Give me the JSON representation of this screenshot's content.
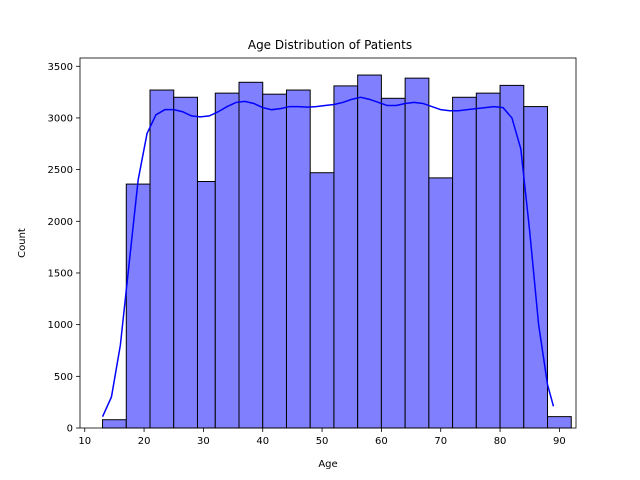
{
  "chart_data": {
    "type": "bar",
    "title": "Age Distribution of Patients",
    "xlabel": "Age",
    "ylabel": "Count",
    "xlim": [
      9.2,
      92.8
    ],
    "ylim": [
      0,
      3580
    ],
    "xticks": [
      10,
      20,
      30,
      40,
      50,
      60,
      70,
      80,
      90
    ],
    "yticks": [
      0,
      500,
      1000,
      1500,
      2000,
      2500,
      3000,
      3500
    ],
    "grid": false,
    "bar_color": "#8080ff",
    "edge_color": "#000000",
    "kde_color": "#0000ff",
    "bins": [
      {
        "x0": 13,
        "x1": 17,
        "count": 80
      },
      {
        "x0": 17,
        "x1": 21,
        "count": 2360
      },
      {
        "x0": 21,
        "x1": 25,
        "count": 3270
      },
      {
        "x0": 25,
        "x1": 29,
        "count": 3200
      },
      {
        "x0": 29,
        "x1": 32,
        "count": 2385
      },
      {
        "x0": 32,
        "x1": 36,
        "count": 3240
      },
      {
        "x0": 36,
        "x1": 40,
        "count": 3345
      },
      {
        "x0": 40,
        "x1": 44,
        "count": 3230
      },
      {
        "x0": 44,
        "x1": 48,
        "count": 3270
      },
      {
        "x0": 48,
        "x1": 52,
        "count": 2470
      },
      {
        "x0": 52,
        "x1": 56,
        "count": 3310
      },
      {
        "x0": 56,
        "x1": 60,
        "count": 3415
      },
      {
        "x0": 60,
        "x1": 64,
        "count": 3190
      },
      {
        "x0": 64,
        "x1": 68,
        "count": 3385
      },
      {
        "x0": 68,
        "x1": 72,
        "count": 2420
      },
      {
        "x0": 72,
        "x1": 76,
        "count": 3200
      },
      {
        "x0": 76,
        "x1": 80,
        "count": 3240
      },
      {
        "x0": 80,
        "x1": 84,
        "count": 3315
      },
      {
        "x0": 84,
        "x1": 88,
        "count": 3110
      },
      {
        "x0": 88,
        "x1": 92,
        "count": 110
      }
    ],
    "kde": {
      "x": [
        13,
        14.5,
        16,
        17.5,
        19,
        20.5,
        22,
        23.5,
        25,
        26.5,
        28,
        29.5,
        31,
        32.5,
        34,
        35.5,
        37,
        38.5,
        40,
        41.5,
        43,
        44.5,
        46,
        47.5,
        49,
        50.5,
        52,
        53.5,
        55,
        56.5,
        58,
        59.5,
        61,
        62.5,
        64,
        65.5,
        67,
        68.5,
        70,
        71.5,
        73,
        74.5,
        76,
        77.5,
        79,
        80.5,
        82,
        83.5,
        85,
        86.5,
        88,
        89
      ],
      "y": [
        110,
        300,
        800,
        1600,
        2400,
        2850,
        3030,
        3080,
        3080,
        3060,
        3020,
        3010,
        3020,
        3060,
        3110,
        3150,
        3160,
        3140,
        3100,
        3080,
        3090,
        3110,
        3110,
        3105,
        3110,
        3120,
        3130,
        3150,
        3180,
        3200,
        3180,
        3150,
        3120,
        3120,
        3140,
        3150,
        3140,
        3110,
        3080,
        3070,
        3070,
        3080,
        3090,
        3100,
        3110,
        3100,
        3000,
        2700,
        1900,
        1000,
        420,
        210
      ]
    }
  }
}
